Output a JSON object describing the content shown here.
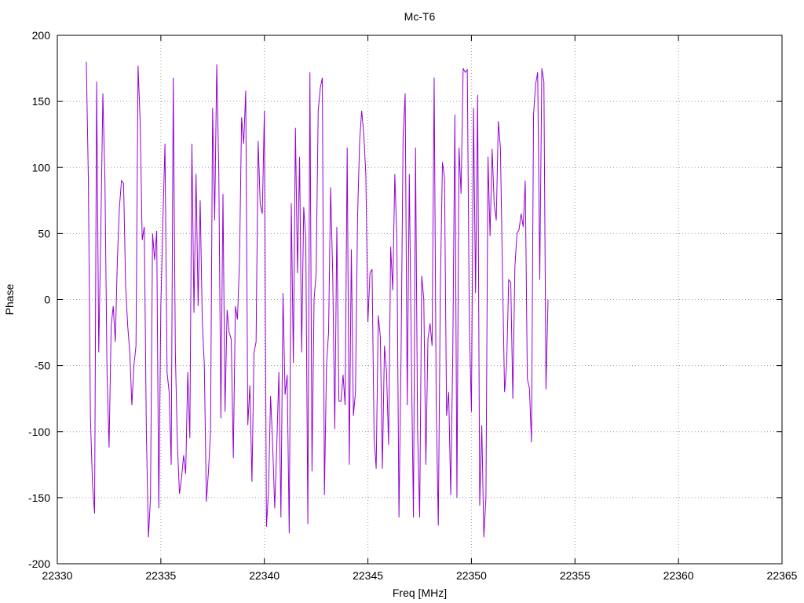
{
  "chart_data": {
    "type": "line",
    "title": "Mc-T6",
    "xlabel": "Freq [MHz]",
    "ylabel": "Phase",
    "xlim": [
      22330,
      22365
    ],
    "ylim": [
      -200,
      200
    ],
    "x_ticks": [
      "22330",
      "22335",
      "22340",
      "22345",
      "22350",
      "22355",
      "22360",
      "22365"
    ],
    "y_ticks": [
      "-200",
      "-150",
      "-100",
      "-50",
      "0",
      "50",
      "100",
      "150",
      "200"
    ],
    "grid": true,
    "legend": "none",
    "series": [
      {
        "color": "#9400d3",
        "x_start": 22331.4,
        "x_step": 0.1,
        "values": [
          180,
          90,
          -90,
          -140,
          -162,
          165,
          -40,
          50,
          156,
          90,
          -55,
          -112,
          -20,
          -5,
          -32,
          30,
          70,
          90,
          88,
          10,
          -20,
          -40,
          -80,
          -50,
          -35,
          177,
          135,
          45,
          55,
          -100,
          -180,
          -150,
          50,
          30,
          52,
          -158,
          -5,
          60,
          118,
          -55,
          -70,
          -125,
          168,
          -40,
          -110,
          -147,
          -135,
          -118,
          -132,
          -55,
          -105,
          118,
          -10,
          95,
          -5,
          75,
          -15,
          -50,
          -153,
          -130,
          -100,
          145,
          60,
          178,
          95,
          -90,
          80,
          -85,
          -8,
          -25,
          -30,
          -120,
          -5,
          -15,
          30,
          138,
          118,
          158,
          -95,
          -65,
          -138,
          -40,
          -32,
          120,
          72,
          65,
          143,
          -172,
          -145,
          -73,
          -110,
          -158,
          -110,
          -55,
          -165,
          5,
          -72,
          -57,
          -177,
          73,
          -48,
          130,
          20,
          108,
          -40,
          70,
          46,
          -170,
          172,
          -130,
          0,
          20,
          143,
          160,
          168,
          -148,
          -50,
          -25,
          85,
          20,
          -98,
          55,
          -77,
          -77,
          -57,
          -80,
          115,
          -125,
          38,
          -88,
          -70,
          62,
          120,
          143,
          125,
          95,
          -17,
          20,
          23,
          -105,
          -128,
          -12,
          -28,
          -128,
          -35,
          -55,
          -110,
          40,
          7,
          95,
          45,
          -165,
          -45,
          123,
          156,
          -80,
          95,
          -45,
          -165,
          115,
          -100,
          -165,
          18,
          0,
          -125,
          -30,
          -18,
          -35,
          168,
          -80,
          -171,
          10,
          104,
          92,
          -88,
          -70,
          -148,
          -40,
          140,
          -150,
          115,
          80,
          175,
          172,
          174,
          -20,
          -85,
          145,
          5,
          155,
          -156,
          -95,
          -180,
          -150,
          108,
          48,
          114,
          72,
          60,
          135,
          115,
          20,
          -70,
          -50,
          15,
          13,
          -75,
          25,
          50,
          53,
          65,
          55,
          90,
          -60,
          -67,
          -108,
          140,
          163,
          172,
          15,
          175,
          165,
          -68,
          0
        ]
      }
    ]
  }
}
